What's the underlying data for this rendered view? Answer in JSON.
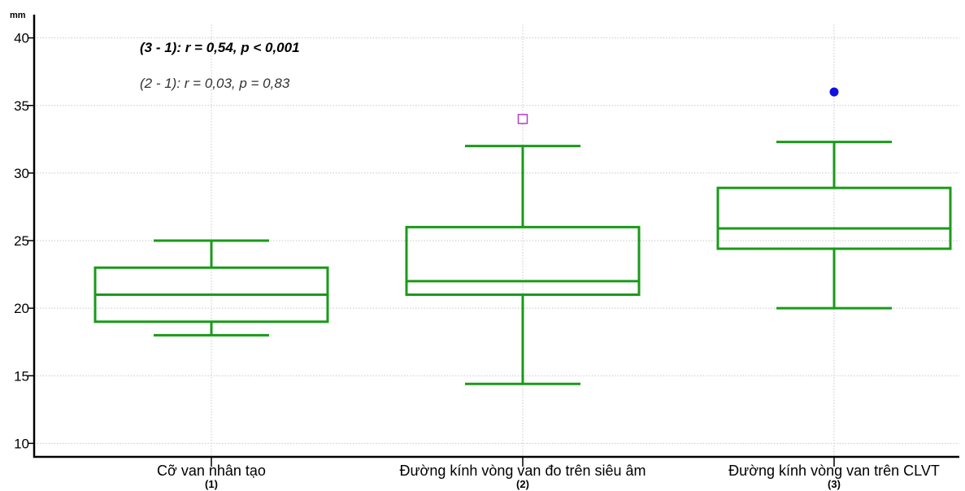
{
  "chart_data": {
    "type": "box",
    "ylabel": "mm",
    "ylim": [
      9,
      41
    ],
    "yticks": [
      10,
      15,
      20,
      25,
      30,
      35,
      40
    ],
    "grid": true,
    "categories": [
      {
        "label": "Cỡ van nhân tạo",
        "sub": "(1)"
      },
      {
        "label": "Đường kính vòng van đo trên siêu âm",
        "sub": "(2)"
      },
      {
        "label": "Đường kính vòng van trên CLVT",
        "sub": "(3)"
      }
    ],
    "boxes": [
      {
        "whisker_low": 18,
        "q1": 19,
        "median": 21,
        "q3": 23,
        "whisker_high": 25,
        "outliers": []
      },
      {
        "whisker_low": 14.4,
        "q1": 21,
        "median": 22,
        "q3": 26,
        "whisker_high": 32,
        "outliers": [
          {
            "value": 34,
            "marker": "square"
          }
        ]
      },
      {
        "whisker_low": 20,
        "q1": 24.4,
        "median": 25.9,
        "q3": 28.9,
        "whisker_high": 32.3,
        "outliers": [
          {
            "value": 36,
            "marker": "dot"
          }
        ]
      }
    ],
    "annotations": [
      {
        "text": "(3 - 1): r = 0,54, p < 0,001",
        "style": "bold-italic"
      },
      {
        "text": "(2 - 1): r = 0,03, p = 0,83",
        "style": "italic"
      }
    ],
    "colors": {
      "box": "#1a9a1a",
      "outlier_square": "#b040c0",
      "outlier_dot": "#1010e0",
      "grid": "#c8c8c8",
      "axis": "#000000"
    }
  }
}
